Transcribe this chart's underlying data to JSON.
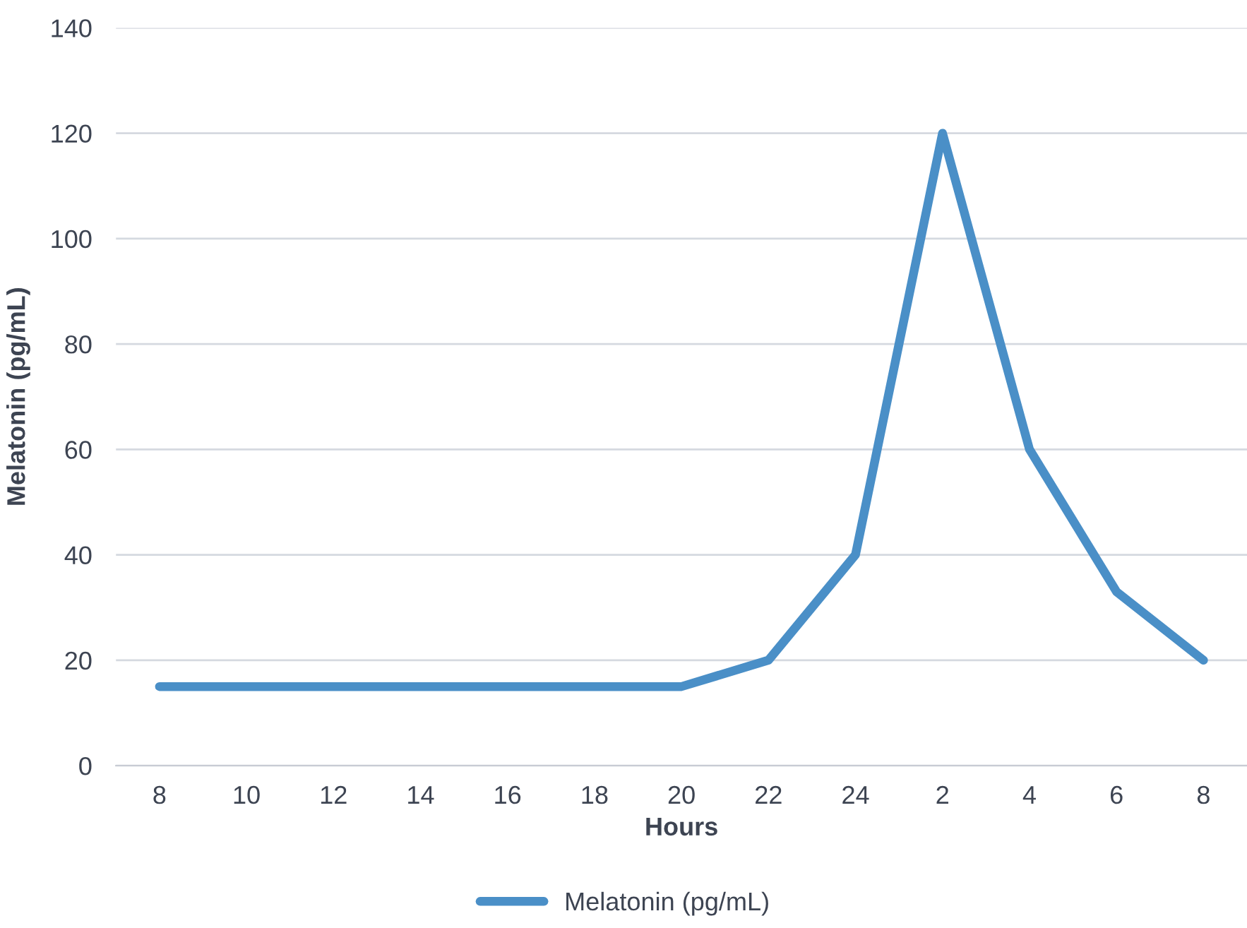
{
  "chart_data": {
    "type": "line",
    "xlabel": "Hours",
    "ylabel": "Melatonin (pg/mL)",
    "categories": [
      "8",
      "10",
      "12",
      "14",
      "16",
      "18",
      "20",
      "22",
      "24",
      "2",
      "4",
      "6",
      "8"
    ],
    "series": [
      {
        "name": "Melatonin (pg/mL)",
        "color": "#4a8fc7",
        "values": [
          15,
          15,
          15,
          15,
          15,
          15,
          15,
          20,
          40,
          120,
          60,
          33,
          20
        ]
      }
    ],
    "ylim": [
      0,
      140
    ],
    "yticks": [
      0,
      20,
      40,
      60,
      80,
      100,
      120,
      140
    ],
    "grid": "y",
    "legend": "bottom",
    "marker": "none",
    "line_style": "solid"
  }
}
